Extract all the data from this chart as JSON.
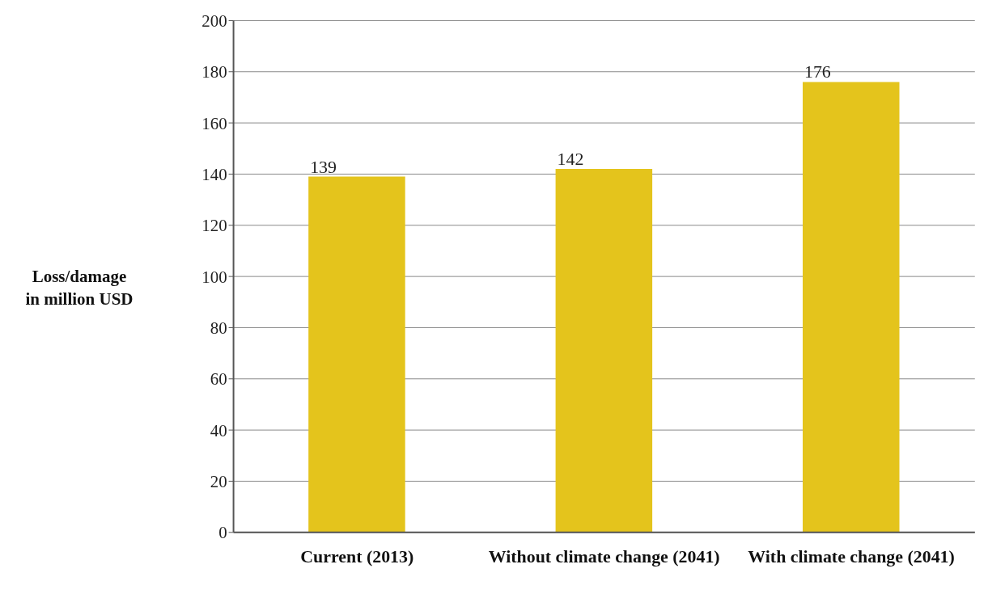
{
  "chart_data": {
    "type": "bar",
    "ylabel": "Loss/damage in million USD",
    "categories": [
      "Current (2013)",
      "Without climate change (2041)",
      "With climate change (2041)"
    ],
    "values": [
      139,
      142,
      176
    ],
    "color": "#e4c41c",
    "ylim": [
      0,
      200
    ],
    "yticks": [
      0,
      20,
      40,
      60,
      80,
      100,
      120,
      140,
      160,
      180,
      200
    ],
    "grid": "y",
    "data_labels": true
  }
}
